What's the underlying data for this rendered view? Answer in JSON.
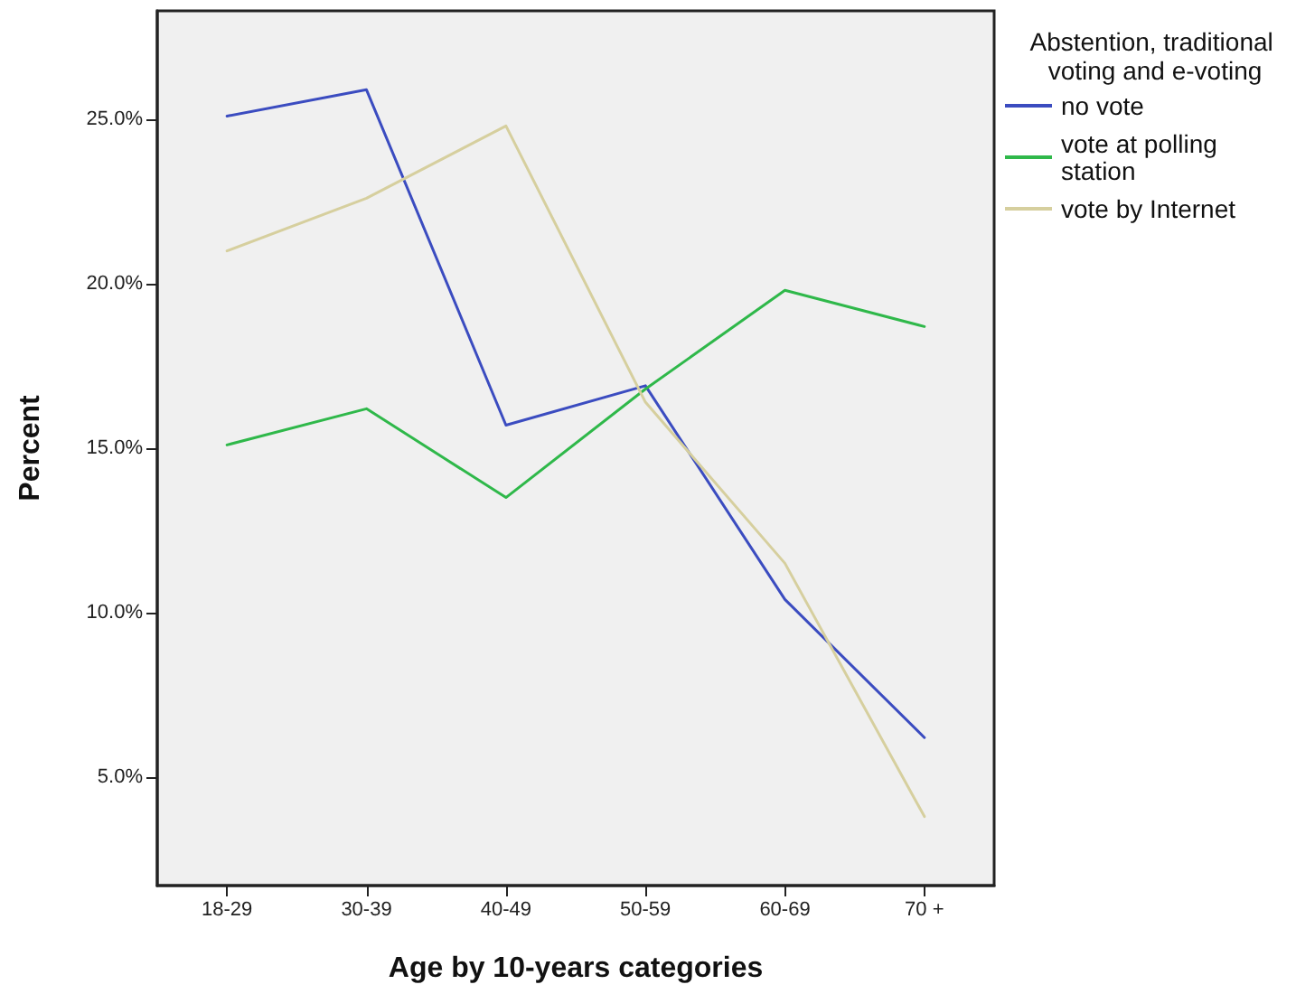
{
  "chart_data": {
    "type": "line",
    "xlabel": "Age by 10-years categories",
    "ylabel": "Percent",
    "legend_title": "Abstention, traditional voting and e-voting",
    "categories": [
      "18-29",
      "30-39",
      "40-49",
      "50-59",
      "60-69",
      "70 +"
    ],
    "series": [
      {
        "name": "no vote",
        "color": "#3b4cc0",
        "values": [
          25.1,
          25.9,
          15.7,
          16.9,
          10.4,
          6.2
        ]
      },
      {
        "name": "vote at polling station",
        "color": "#2fb84a",
        "values": [
          15.1,
          16.2,
          13.5,
          16.8,
          19.8,
          18.7
        ]
      },
      {
        "name": "vote by Internet",
        "color": "#d6cf9e",
        "values": [
          21.0,
          22.6,
          24.8,
          16.4,
          11.5,
          3.8
        ]
      }
    ],
    "ylim": [
      1.7,
      28.3
    ],
    "yticks": [
      {
        "value": 5,
        "label": "5.0%"
      },
      {
        "value": 10,
        "label": "10.0%"
      },
      {
        "value": 15,
        "label": "15.0%"
      },
      {
        "value": 20,
        "label": "20.0%"
      },
      {
        "value": 25,
        "label": "25.0%"
      }
    ],
    "grid": false,
    "legend": "right",
    "marker": "none",
    "line_style": "solid"
  }
}
